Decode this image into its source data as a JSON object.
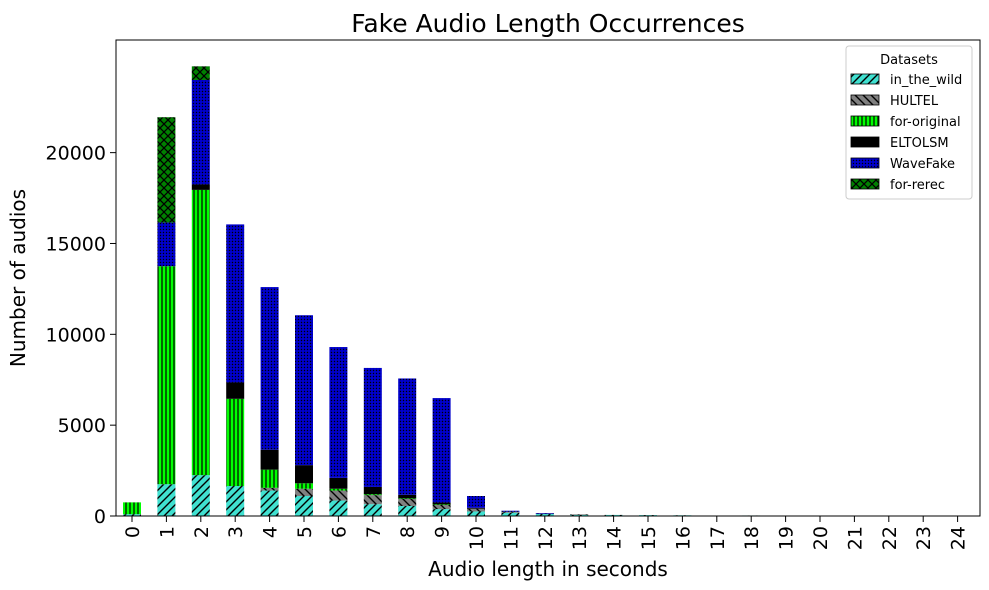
{
  "chart_data": {
    "type": "bar",
    "stacked": true,
    "title": "Fake Audio Length Occurrences",
    "xlabel": "Audio length in seconds",
    "ylabel": "Number of audios",
    "categories": [
      "0",
      "1",
      "2",
      "3",
      "4",
      "5",
      "6",
      "7",
      "8",
      "9",
      "10",
      "11",
      "12",
      "13",
      "14",
      "15",
      "16",
      "17",
      "18",
      "19",
      "20",
      "21",
      "22",
      "23",
      "24"
    ],
    "ylim": [
      0,
      26200
    ],
    "yticks": [
      0,
      5000,
      10000,
      15000,
      20000
    ],
    "ytick_labels": [
      "0",
      "5000",
      "10000",
      "15000",
      "20000"
    ],
    "legend": {
      "title": "Datasets",
      "position": "upper right"
    },
    "grid": false,
    "series": [
      {
        "name": "in_the_wild",
        "color": "#40e0d0",
        "pattern": "diag-right",
        "values": [
          100,
          1750,
          2250,
          1650,
          1400,
          1100,
          850,
          650,
          550,
          380,
          250,
          180,
          120,
          80,
          60,
          50,
          40,
          0,
          30,
          0,
          0,
          0,
          0,
          0,
          0
        ]
      },
      {
        "name": "HULTEL",
        "color": "#808080",
        "pattern": "diag-left",
        "values": [
          0,
          0,
          0,
          0,
          150,
          400,
          550,
          500,
          400,
          250,
          150,
          50,
          20,
          10,
          0,
          0,
          0,
          0,
          0,
          0,
          0,
          0,
          0,
          0,
          0
        ]
      },
      {
        "name": "for-original",
        "color": "#00ff00",
        "pattern": "vertical",
        "values": [
          650,
          12000,
          15700,
          4800,
          1000,
          300,
          100,
          50,
          20,
          10,
          0,
          0,
          0,
          0,
          0,
          0,
          0,
          0,
          0,
          0,
          0,
          0,
          0,
          0,
          0
        ]
      },
      {
        "name": "ELTOLSM",
        "color": "#000000",
        "pattern": "solid",
        "values": [
          0,
          0,
          300,
          900,
          1100,
          1000,
          600,
          400,
          200,
          100,
          50,
          0,
          0,
          0,
          0,
          0,
          0,
          0,
          0,
          0,
          0,
          0,
          0,
          0,
          0
        ]
      },
      {
        "name": "WaveFake",
        "color": "#0000cd",
        "pattern": "dots",
        "values": [
          0,
          2400,
          5750,
          8700,
          8950,
          8250,
          7200,
          6550,
          6400,
          5750,
          650,
          60,
          20,
          0,
          0,
          0,
          0,
          0,
          0,
          0,
          0,
          0,
          0,
          0,
          0
        ]
      },
      {
        "name": "for-rerec",
        "color": "#008000",
        "pattern": "crosshatch",
        "values": [
          0,
          5800,
          750,
          0,
          0,
          0,
          0,
          0,
          0,
          0,
          0,
          0,
          0,
          0,
          0,
          0,
          0,
          0,
          0,
          0,
          0,
          0,
          0,
          0,
          0
        ]
      }
    ]
  }
}
